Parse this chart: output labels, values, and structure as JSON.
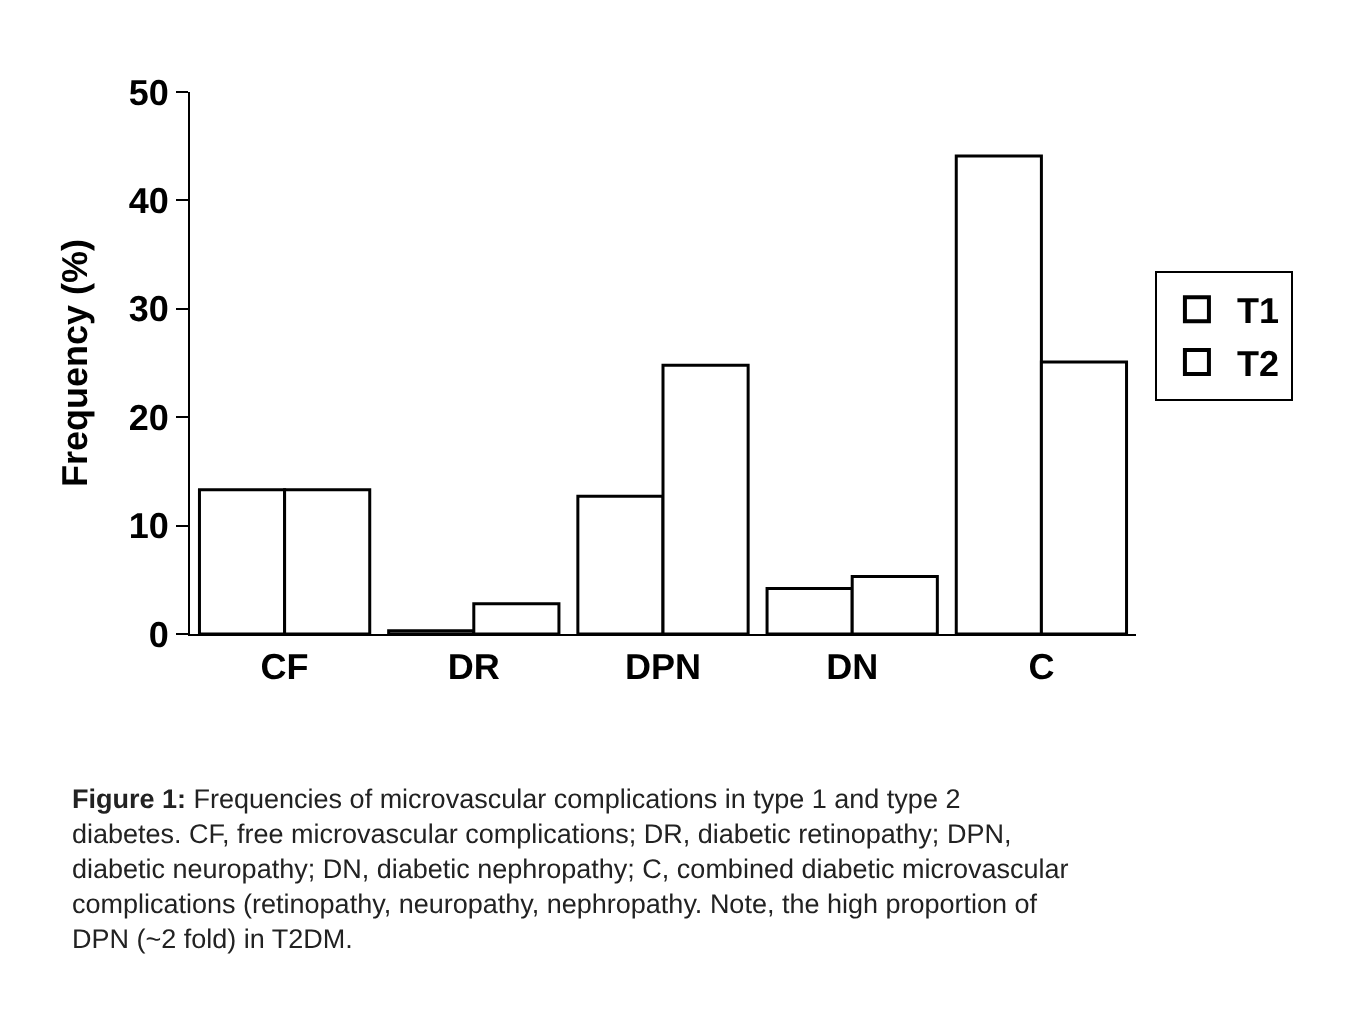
{
  "chart_data": {
    "type": "bar",
    "ylabel": "Frequency (%)",
    "categories": [
      "CF",
      "DR",
      "DPN",
      "DN",
      "C"
    ],
    "series": [
      {
        "name": "T1",
        "color": "#ffffff",
        "values": [
          13.3,
          0.3,
          12.7,
          4.2,
          44.1
        ]
      },
      {
        "name": "T2",
        "color": "#ffffff",
        "values": [
          13.3,
          2.8,
          24.8,
          5.3,
          25.1
        ]
      }
    ],
    "ylim": [
      0,
      50
    ],
    "yticks": [
      0,
      10,
      20,
      30,
      40,
      50
    ],
    "legend": "right",
    "annotations": [
      "Figure 1:",
      "Frequencies of microvascular complications in type 1 and type 2 diabetes. CF, free microvascular complications; DR, diabetic retinopathy; DPN, diabetic neuropathy; DN, diabetic nephropathy; C, combined diabetic microvascular complications (retinopathy, neuropathy, nephropathy. Note, the high proportion of DPN (~2 fold) in T2DM."
    ]
  }
}
